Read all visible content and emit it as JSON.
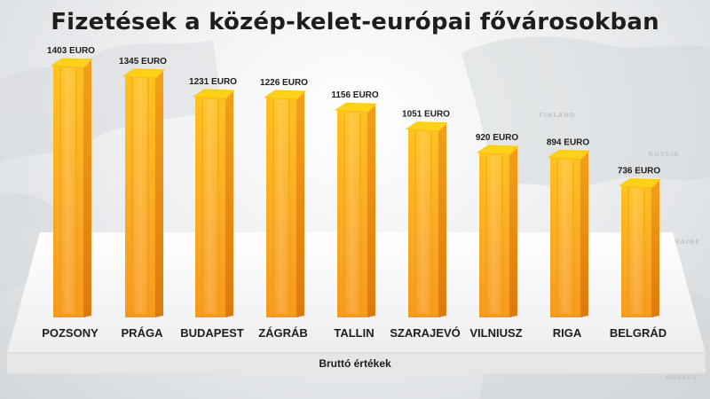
{
  "chart_data": {
    "type": "bar",
    "title": "Fizetések a közép-kelet-európai fővárosokban",
    "xlabel": "Bruttó értékek",
    "categories": [
      "POZSONY",
      "PRÁGA",
      "BUDAPEST",
      "ZÁGRÁB",
      "TALLIN",
      "SZARAJEVÓ",
      "VILNIUSZ",
      "RIGA",
      "BELGRÁD"
    ],
    "values": [
      1403,
      1345,
      1231,
      1226,
      1156,
      1051,
      920,
      894,
      736
    ],
    "value_labels": [
      "1403 EURO",
      "1345 EURO",
      "1231 EURO",
      "1226 EURO",
      "1156 EURO",
      "1051 EURO",
      "920 EURO",
      "894 EURO",
      "736 EURO"
    ],
    "unit": "EURO",
    "ylim": [
      0,
      1500
    ],
    "grid": false,
    "legend": "none"
  },
  "background": {
    "map_labels": [
      "FINLAND",
      "RUSSIA",
      "UKRAINE",
      "GREECE"
    ]
  },
  "colors": {
    "bar_front": "#f9a31d",
    "bar_side": "#e07f10",
    "bar_top": "#ffd21a",
    "platform": "#f3f4f5",
    "text": "#1e1e1e"
  }
}
